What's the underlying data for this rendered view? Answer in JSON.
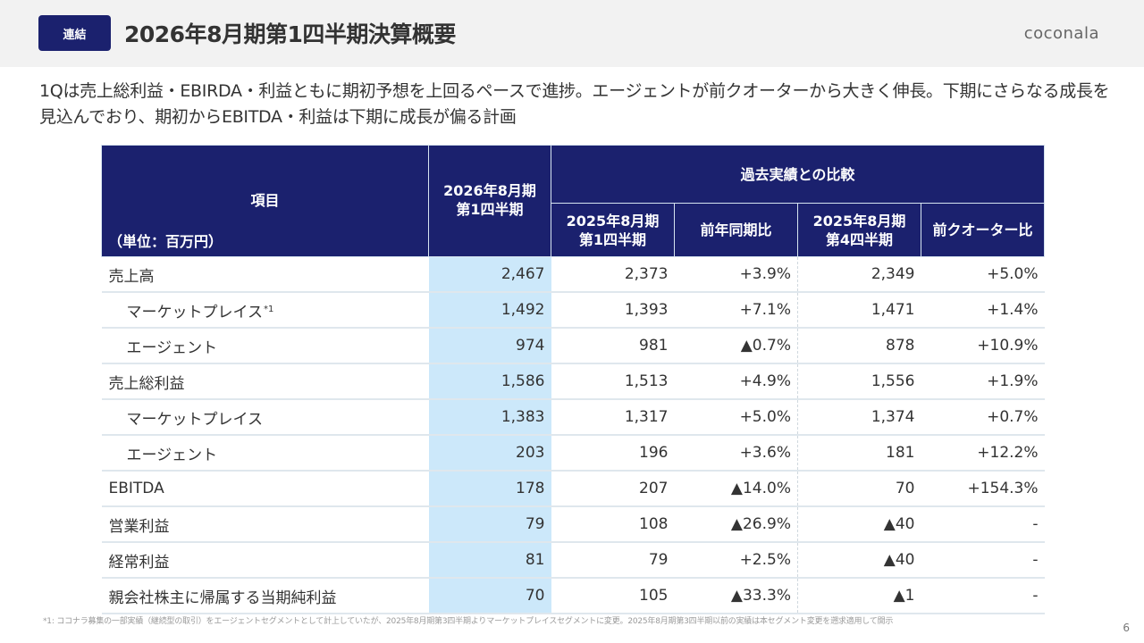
{
  "header": {
    "badge": "連結",
    "title": "2026年8月期第1四半期決算概要",
    "logo": "coconala"
  },
  "summary": "1Qは売上総利益・EBIRDA・利益ともに期初予想を上回るペースで進捗。エージェントが前クオーターから大きく伸長。下期にさらなる成長を見込んでおり、期初からEBITDA・利益は下期に成長が偏る計画",
  "table": {
    "headers": {
      "item": "項目",
      "unit": "（単位：百万円）",
      "current": "2026年8月期\n第1四半期",
      "comparison_group": "過去実績との比較",
      "prev_year_q": "2025年8月期\n第1四半期",
      "yoy": "前年同期比",
      "prev_q": "2025年8月期\n第4四半期",
      "qoq": "前クオーター比"
    },
    "rows": [
      {
        "label": "売上高",
        "indent": false,
        "footnote": "",
        "current": "2,467",
        "prev_year_q": "2,373",
        "yoy": "+3.9%",
        "prev_q": "2,349",
        "qoq": "+5.0%"
      },
      {
        "label": "マーケットプレイス",
        "indent": true,
        "footnote": "*1",
        "current": "1,492",
        "prev_year_q": "1,393",
        "yoy": "+7.1%",
        "prev_q": "1,471",
        "qoq": "+1.4%"
      },
      {
        "label": "エージェント",
        "indent": true,
        "footnote": "",
        "current": "974",
        "prev_year_q": "981",
        "yoy": "▲0.7%",
        "prev_q": "878",
        "qoq": "+10.9%"
      },
      {
        "label": "売上総利益",
        "indent": false,
        "footnote": "",
        "current": "1,586",
        "prev_year_q": "1,513",
        "yoy": "+4.9%",
        "prev_q": "1,556",
        "qoq": "+1.9%"
      },
      {
        "label": "マーケットプレイス",
        "indent": true,
        "footnote": "",
        "current": "1,383",
        "prev_year_q": "1,317",
        "yoy": "+5.0%",
        "prev_q": "1,374",
        "qoq": "+0.7%"
      },
      {
        "label": "エージェント",
        "indent": true,
        "footnote": "",
        "current": "203",
        "prev_year_q": "196",
        "yoy": "+3.6%",
        "prev_q": "181",
        "qoq": "+12.2%"
      },
      {
        "label": "EBITDA",
        "indent": false,
        "footnote": "",
        "current": "178",
        "prev_year_q": "207",
        "yoy": "▲14.0%",
        "prev_q": "70",
        "qoq": "+154.3%"
      },
      {
        "label": "営業利益",
        "indent": false,
        "footnote": "",
        "current": "79",
        "prev_year_q": "108",
        "yoy": "▲26.9%",
        "prev_q": "▲40",
        "qoq": "-"
      },
      {
        "label": "経常利益",
        "indent": false,
        "footnote": "",
        "current": "81",
        "prev_year_q": "79",
        "yoy": "+2.5%",
        "prev_q": "▲40",
        "qoq": "-"
      },
      {
        "label": "親会社株主に帰属する当期純利益",
        "indent": false,
        "footnote": "",
        "current": "70",
        "prev_year_q": "105",
        "yoy": "▲33.3%",
        "prev_q": "▲1",
        "qoq": "-"
      }
    ]
  },
  "footnote": "*1: ココナラ募集の一部実績（継続型の取引）をエージェントセグメントとして計上していたが、2025年8月期第3四半期よりマーケットプレイスセグメントに変更。2025年8月期第3四半期以前の実績は本セグメント変更を遡求適用して開示",
  "page_number": "6"
}
